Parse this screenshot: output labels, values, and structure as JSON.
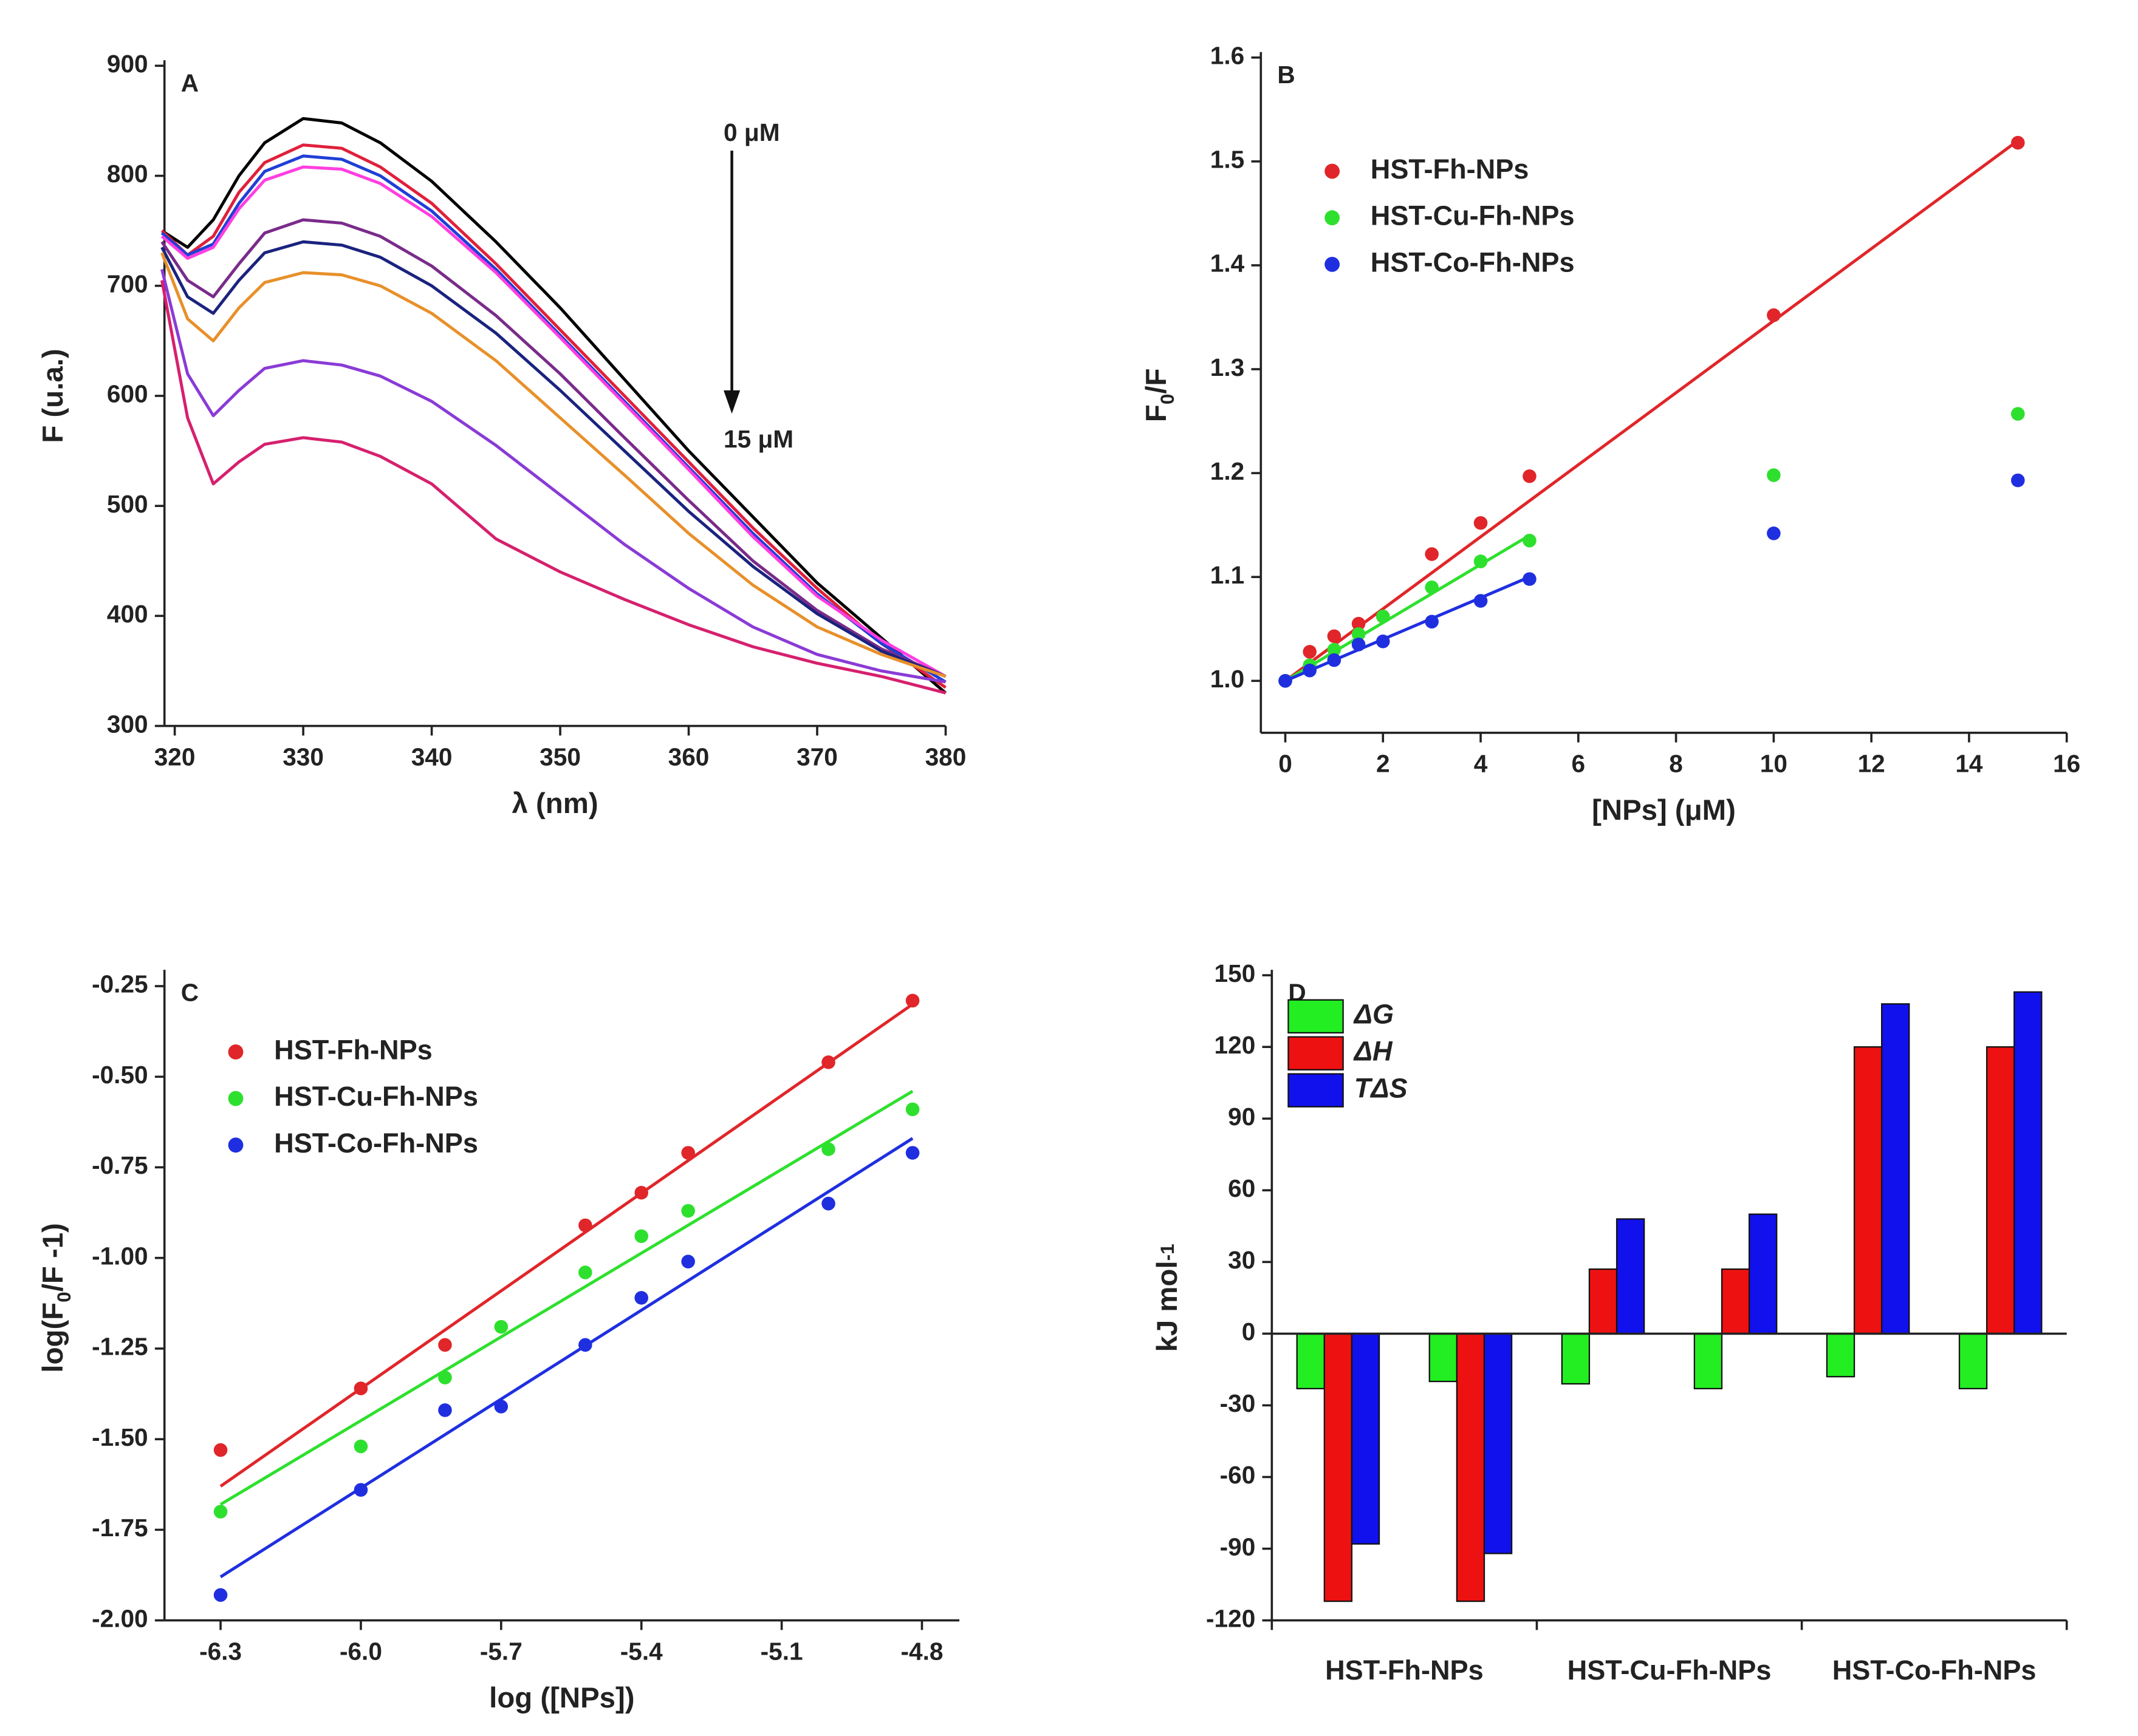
{
  "chart_data": [
    {
      "type": "line",
      "panel": "A",
      "xlabel": "λ (nm)",
      "ylabel": [
        "F (u.a.)"
      ],
      "annotations": [
        "0 μM",
        "15 μM"
      ],
      "xlim": [
        319.2,
        380
      ],
      "xticks": [
        320,
        330,
        340,
        350,
        360,
        370,
        380
      ],
      "ylim": [
        300,
        900
      ],
      "yticks": [
        300,
        400,
        500,
        600,
        700,
        800,
        900
      ],
      "x": [
        319,
        321,
        323,
        325,
        327,
        330,
        333,
        336,
        340,
        345,
        350,
        355,
        360,
        365,
        370,
        375,
        380
      ],
      "series": [
        {
          "color": "#000000",
          "values": [
            750,
            735,
            760,
            800,
            830,
            852,
            848,
            830,
            795,
            740,
            680,
            615,
            550,
            490,
            430,
            380,
            330
          ]
        },
        {
          "color": "#e0203a",
          "values": [
            750,
            728,
            745,
            785,
            812,
            828,
            825,
            808,
            775,
            720,
            660,
            600,
            540,
            480,
            425,
            375,
            335
          ]
        },
        {
          "color": "#1f3fd6",
          "values": [
            748,
            728,
            738,
            775,
            804,
            818,
            815,
            800,
            768,
            715,
            655,
            595,
            535,
            475,
            420,
            375,
            340
          ]
        },
        {
          "color": "#ff3ee0",
          "values": [
            745,
            725,
            735,
            770,
            796,
            808,
            806,
            793,
            763,
            712,
            653,
            593,
            533,
            472,
            418,
            378,
            345
          ]
        },
        {
          "color": "#7a2b8a",
          "values": [
            740,
            705,
            690,
            720,
            748,
            760,
            757,
            745,
            718,
            673,
            620,
            562,
            505,
            450,
            405,
            370,
            345
          ]
        },
        {
          "color": "#1a237e",
          "values": [
            735,
            690,
            675,
            705,
            730,
            740,
            737,
            726,
            700,
            657,
            605,
            550,
            495,
            445,
            402,
            368,
            345
          ]
        },
        {
          "color": "#e8902a",
          "values": [
            730,
            670,
            650,
            680,
            703,
            712,
            710,
            700,
            675,
            632,
            580,
            528,
            475,
            428,
            390,
            365,
            345
          ]
        },
        {
          "color": "#8a3bd6",
          "values": [
            715,
            620,
            582,
            605,
            625,
            632,
            628,
            618,
            595,
            555,
            510,
            465,
            425,
            390,
            365,
            350,
            340
          ]
        },
        {
          "color": "#d6206e",
          "values": [
            705,
            580,
            520,
            540,
            556,
            562,
            558,
            545,
            520,
            470,
            440,
            415,
            392,
            372,
            357,
            345,
            330
          ]
        }
      ]
    },
    {
      "type": "scatter",
      "panel": "B",
      "xlabel": "[NPs] (μM)",
      "ylabel": [
        "F",
        "0",
        "/F"
      ],
      "ylabel_script": "sub",
      "xlim": [
        -0.5,
        16
      ],
      "xticks": [
        0,
        2,
        4,
        6,
        8,
        10,
        12,
        14,
        16
      ],
      "ylim": [
        0.95,
        1.6
      ],
      "yticks": [
        {
          "value": 1.0,
          "label": "1.0"
        },
        1.1,
        1.2,
        1.3,
        1.4,
        1.5,
        1.6
      ],
      "series": [
        {
          "name": "HST-Fh-NPs",
          "color": "#e0262a",
          "x": [
            0,
            0.5,
            1,
            1.5,
            2,
            3,
            4,
            5,
            10,
            15
          ],
          "values": [
            1.0,
            1.028,
            1.043,
            1.055,
            1.062,
            1.122,
            1.152,
            1.197,
            1.352,
            1.518
          ],
          "fit": {
            "x": [
              0,
              15
            ],
            "values": [
              1.0,
              1.52
            ]
          }
        },
        {
          "name": "HST-Cu-Fh-NPs",
          "color": "#2ee02e",
          "x": [
            0,
            0.5,
            1,
            1.5,
            2,
            3,
            4,
            5,
            10,
            15
          ],
          "values": [
            1.0,
            1.015,
            1.03,
            1.045,
            1.062,
            1.09,
            1.115,
            1.135,
            1.198,
            1.257
          ],
          "fit": {
            "x": [
              0,
              5
            ],
            "values": [
              1.0,
              1.14
            ]
          }
        },
        {
          "name": "HST-Co-Fh-NPs",
          "color": "#1f2fe0",
          "x": [
            0,
            0.5,
            1,
            1.5,
            2,
            3,
            4,
            5,
            10,
            15
          ],
          "values": [
            1.0,
            1.01,
            1.02,
            1.035,
            1.038,
            1.057,
            1.077,
            1.098,
            1.142,
            1.193
          ],
          "fit": {
            "x": [
              0,
              5
            ],
            "values": [
              1.0,
              1.1
            ]
          }
        }
      ]
    },
    {
      "type": "scatter",
      "panel": "C",
      "xlabel": "log ([NPs])",
      "ylabel": [
        "log(F",
        "0",
        "/F -1)"
      ],
      "ylabel_script": "sub",
      "xlim": [
        -6.42,
        -4.72
      ],
      "xticks": [
        -6.3,
        {
          "value": -6.0,
          "label": "-6.0"
        },
        -5.7,
        -5.4,
        -5.1,
        -4.8
      ],
      "ylim": [
        -2.0,
        -0.22
      ],
      "yticks": [
        {
          "value": -2.0,
          "label": "-2.00"
        },
        {
          "value": -1.75,
          "label": "-1.75"
        },
        {
          "value": -1.5,
          "label": "-1.50"
        },
        {
          "value": -1.25,
          "label": "-1.25"
        },
        {
          "value": -1.0,
          "label": "-1.00"
        },
        {
          "value": -0.75,
          "label": "-0.75"
        },
        {
          "value": -0.5,
          "label": "-0.50"
        },
        {
          "value": -0.25,
          "label": "-0.25"
        }
      ],
      "series": [
        {
          "name": "HST-Fh-NPs",
          "color": "#e0262a",
          "x": [
            -6.3,
            -6.0,
            -5.82,
            -5.52,
            -5.4,
            -5.3,
            -5.0,
            -4.82
          ],
          "values": [
            -1.53,
            -1.36,
            -1.24,
            -0.91,
            -0.82,
            -0.71,
            -0.46,
            -0.29
          ],
          "fit": {
            "x": [
              -6.3,
              -4.82
            ],
            "values": [
              -1.63,
              -0.3
            ]
          }
        },
        {
          "name": "HST-Cu-Fh-NPs",
          "color": "#2ee02e",
          "x": [
            -6.3,
            -6.0,
            -5.82,
            -5.7,
            -5.52,
            -5.4,
            -5.3,
            -5.0,
            -4.82
          ],
          "values": [
            -1.7,
            -1.52,
            -1.33,
            -1.19,
            -1.04,
            -0.94,
            -0.87,
            -0.7,
            -0.59
          ],
          "fit": {
            "x": [
              -6.3,
              -4.82
            ],
            "values": [
              -1.68,
              -0.54
            ]
          }
        },
        {
          "name": "HST-Co-Fh-NPs",
          "color": "#1f2fe0",
          "x": [
            -6.3,
            -6.0,
            -5.82,
            -5.7,
            -5.52,
            -5.4,
            -5.3,
            -5.0,
            -4.82
          ],
          "values": [
            -1.93,
            -1.64,
            -1.42,
            -1.41,
            -1.24,
            -1.11,
            -1.01,
            -0.85,
            -0.71
          ],
          "fit": {
            "x": [
              -6.3,
              -4.82
            ],
            "values": [
              -1.88,
              -0.67
            ]
          }
        }
      ]
    },
    {
      "type": "bar",
      "panel": "D",
      "ylabel": [
        "kJ mol",
        "-1"
      ],
      "ylabel_script": "sup",
      "categories": [
        "HST-Fh-NPs",
        null,
        "HST-Cu-Fh-NPs",
        null,
        "HST-Co-Fh-NPs",
        null
      ],
      "ylim": [
        -120,
        150
      ],
      "yticks": [
        -120,
        -90,
        -60,
        -30,
        0,
        30,
        60,
        90,
        120,
        150
      ],
      "series": [
        {
          "name": "ΔG",
          "color": "#22ee22",
          "values": [
            -23,
            -20,
            -21,
            -23,
            -18,
            -23
          ]
        },
        {
          "name": "ΔH",
          "color": "#ee1111",
          "values": [
            -112,
            -112,
            27,
            27,
            120,
            120
          ]
        },
        {
          "name": "TΔS",
          "color": "#1111ee",
          "values": [
            -88,
            -92,
            48,
            50,
            138,
            143
          ]
        }
      ]
    }
  ]
}
